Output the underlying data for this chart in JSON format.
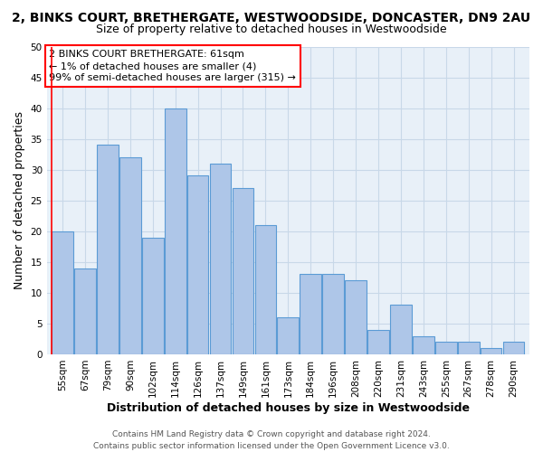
{
  "title": "2, BINKS COURT, BRETHERGATE, WESTWOODSIDE, DONCASTER, DN9 2AU",
  "subtitle": "Size of property relative to detached houses in Westwoodside",
  "xlabel": "Distribution of detached houses by size in Westwoodside",
  "ylabel": "Number of detached properties",
  "categories": [
    "55sqm",
    "67sqm",
    "79sqm",
    "90sqm",
    "102sqm",
    "114sqm",
    "126sqm",
    "137sqm",
    "149sqm",
    "161sqm",
    "173sqm",
    "184sqm",
    "196sqm",
    "208sqm",
    "220sqm",
    "231sqm",
    "243sqm",
    "255sqm",
    "267sqm",
    "278sqm",
    "290sqm"
  ],
  "values": [
    20,
    14,
    34,
    32,
    19,
    40,
    29,
    31,
    27,
    21,
    6,
    13,
    13,
    12,
    4,
    8,
    3,
    2,
    2,
    1,
    2
  ],
  "bar_color": "#aec6e8",
  "bar_edge_color": "#5b9bd5",
  "annotation_text_lines": [
    "2 BINKS COURT BRETHERGATE: 61sqm",
    "← 1% of detached houses are smaller (4)",
    "99% of semi-detached houses are larger (315) →"
  ],
  "annotation_box_color": "#ffffff",
  "annotation_box_edge_color": "#ff0000",
  "vline_x": -0.5,
  "ylim": [
    0,
    50
  ],
  "yticks": [
    0,
    5,
    10,
    15,
    20,
    25,
    30,
    35,
    40,
    45,
    50
  ],
  "grid_color": "#c8d8e8",
  "background_color": "#e8f0f8",
  "footer_lines": [
    "Contains HM Land Registry data © Crown copyright and database right 2024.",
    "Contains public sector information licensed under the Open Government Licence v3.0."
  ],
  "title_fontsize": 10,
  "subtitle_fontsize": 9,
  "axis_label_fontsize": 9,
  "tick_fontsize": 7.5,
  "annotation_fontsize": 8,
  "footer_fontsize": 6.5
}
